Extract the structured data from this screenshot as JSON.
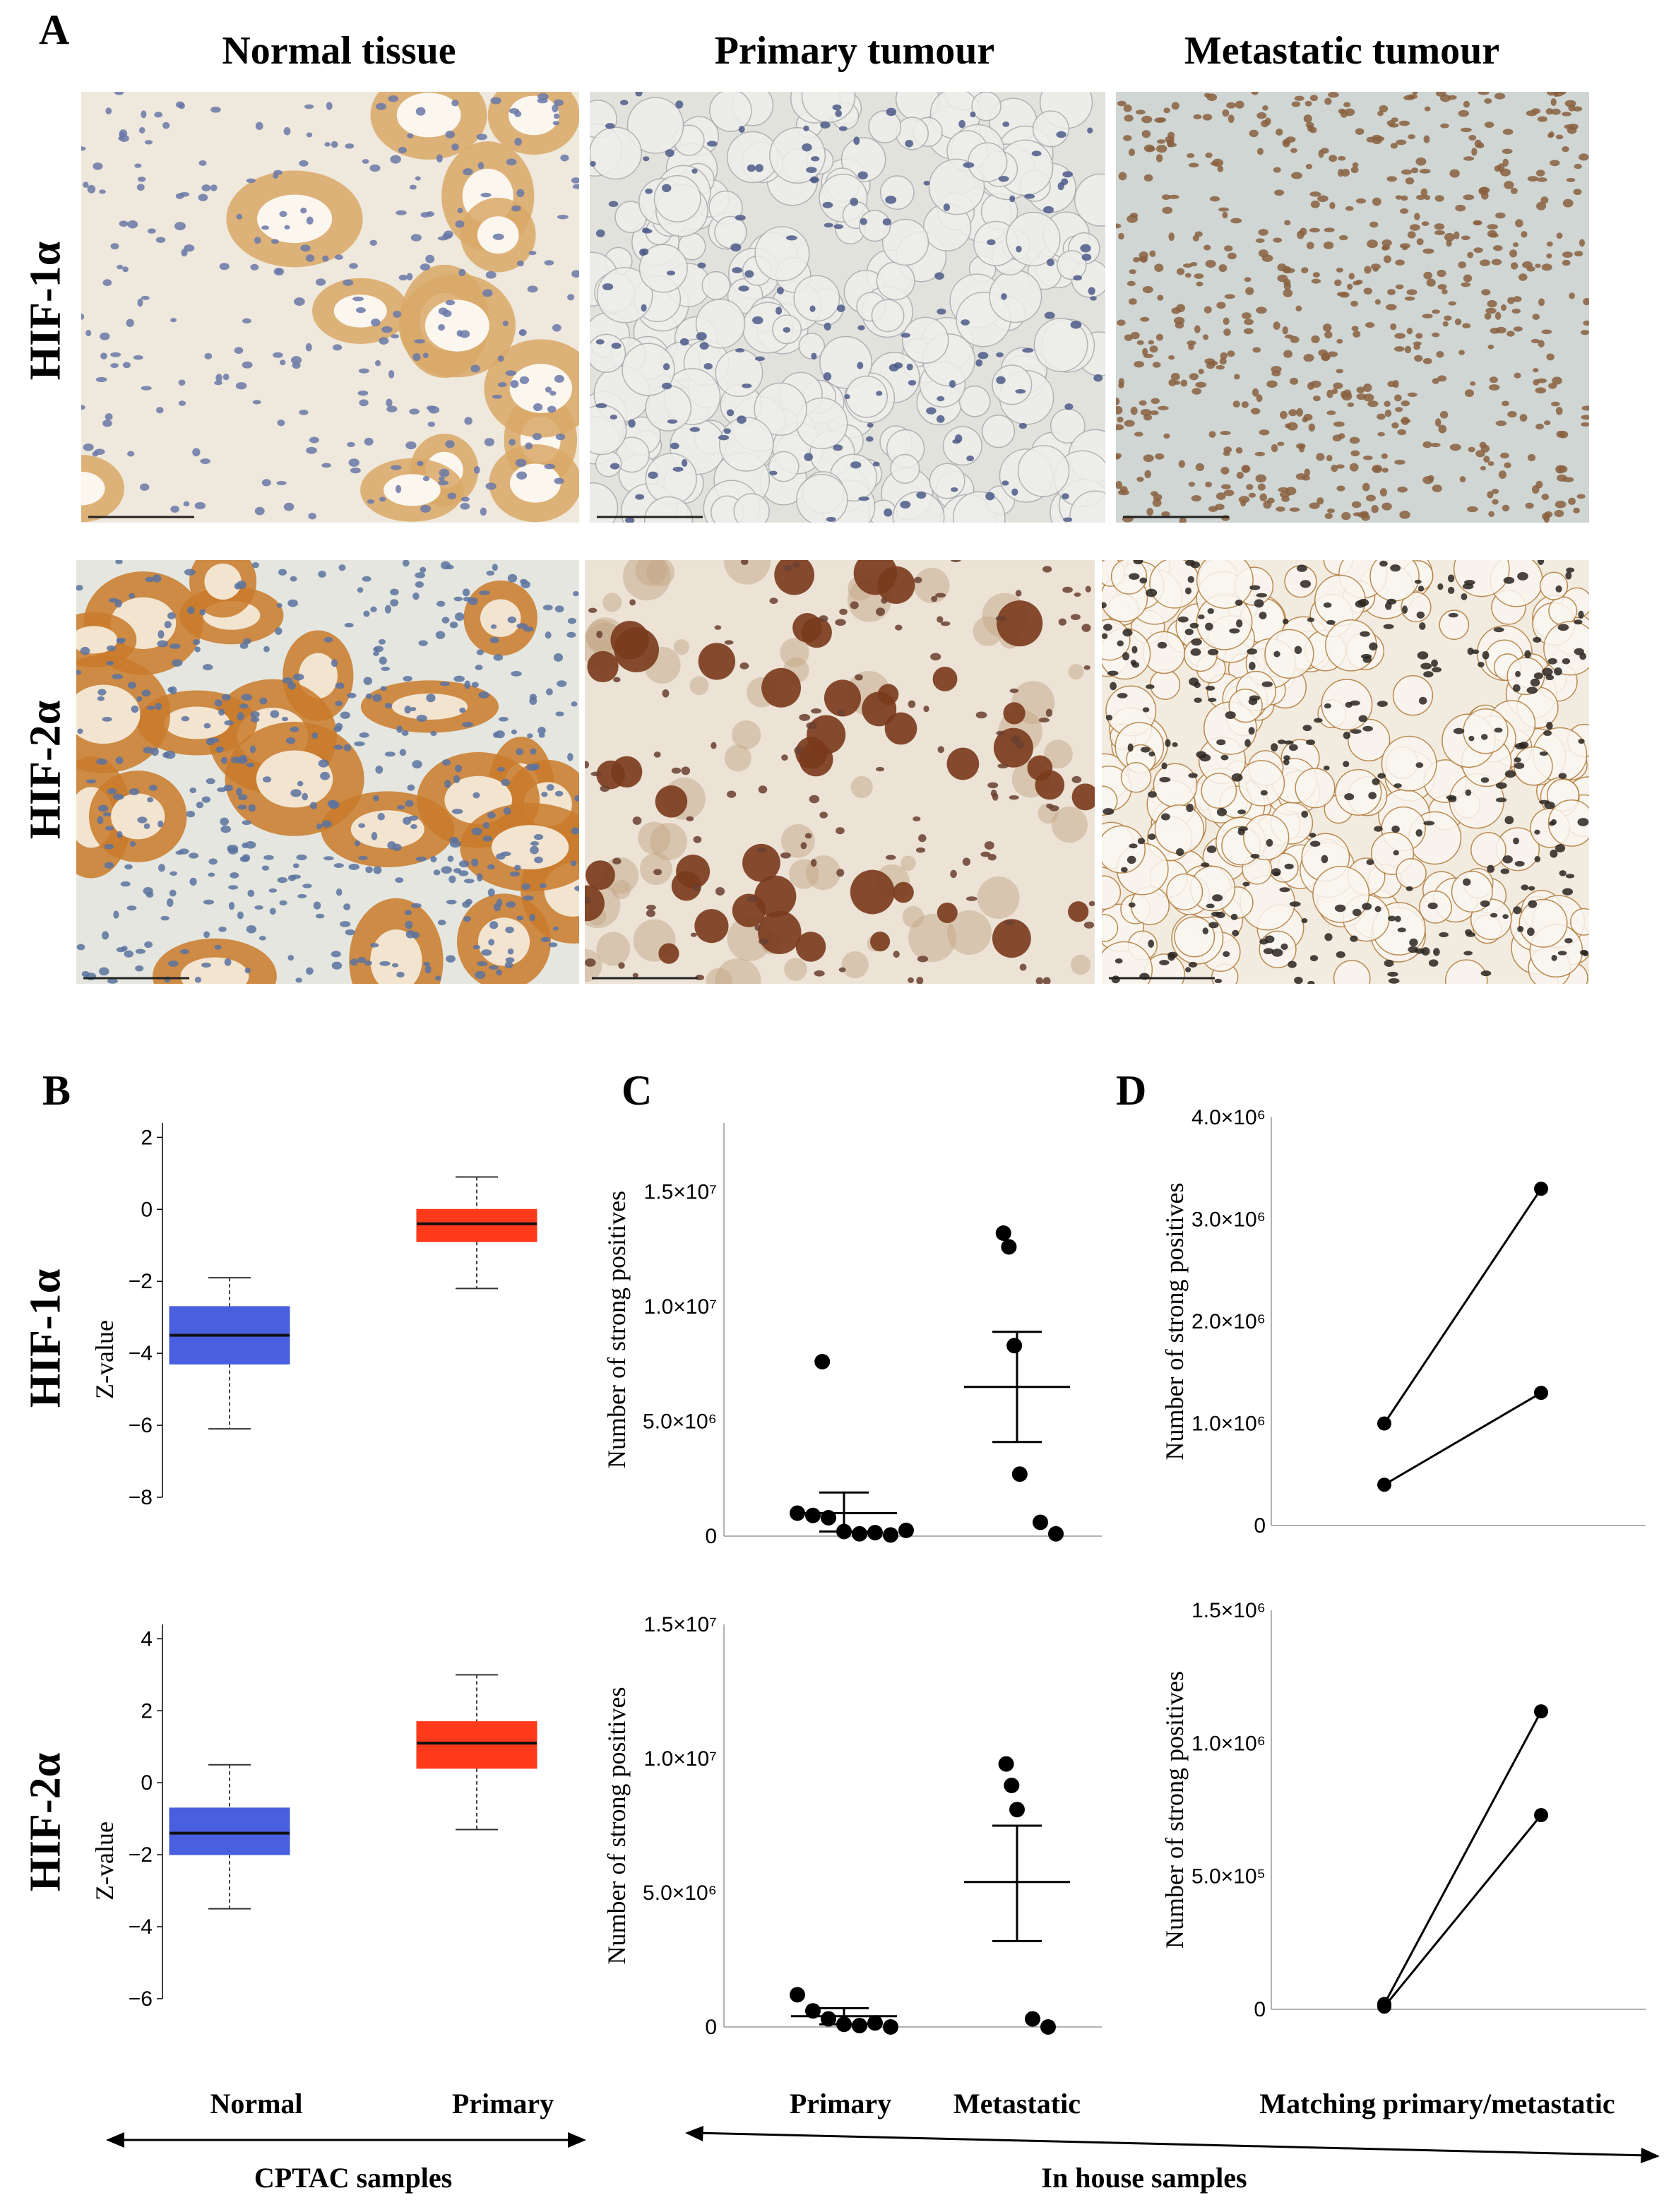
{
  "panel_letters": {
    "a": "A",
    "b": "B",
    "c": "C",
    "d": "D"
  },
  "columns": [
    "Normal tissue",
    "Primary tumour",
    "Metastatic tumour"
  ],
  "rows": {
    "hif1": "HIF-1α",
    "hif2": "HIF-2α"
  },
  "images": [
    {
      "name": "hif1-normal",
      "stain": "light brown cytoplasm, blue nuclei"
    },
    {
      "name": "hif1-primary",
      "stain": "mostly blue nuclei, clear cells"
    },
    {
      "name": "hif1-metastatic",
      "stain": "dense brown nuclei"
    },
    {
      "name": "hif2-normal",
      "stain": "strong brown tubules, blue glomeruli"
    },
    {
      "name": "hif2-primary",
      "stain": "dark brown clusters"
    },
    {
      "name": "hif2-metastatic",
      "stain": "brown membranes, dark nuclei"
    }
  ],
  "colors": {
    "normal_box": "#4a5ee0",
    "primary_box": "#ff3a1a",
    "stain_brown": "#b8641e",
    "nuclei_blue": "#5a6aa0"
  },
  "chart_data": [
    {
      "id": "B-HIF1",
      "type": "box",
      "ylabel": "Z-value",
      "yticks": [
        2,
        0,
        -2,
        -4,
        -6,
        -8
      ],
      "ylim": [
        -8,
        2.4
      ],
      "categories": [
        "Normal",
        "Primary"
      ],
      "boxes": [
        {
          "category": "Normal",
          "whisker_low": -6.1,
          "q1": -4.3,
          "median": -3.5,
          "q3": -2.7,
          "whisker_high": -1.9
        },
        {
          "category": "Primary",
          "whisker_low": -2.2,
          "q1": -0.9,
          "median": -0.4,
          "q3": 0.0,
          "whisker_high": 0.9
        }
      ]
    },
    {
      "id": "B-HIF2",
      "type": "box",
      "ylabel": "Z-value",
      "yticks": [
        4,
        2,
        0,
        -2,
        -4,
        -6
      ],
      "ylim": [
        -6,
        4.4
      ],
      "categories": [
        "Normal",
        "Primary"
      ],
      "boxes": [
        {
          "category": "Normal",
          "whisker_low": -3.5,
          "q1": -2.0,
          "median": -1.4,
          "q3": -0.7,
          "whisker_high": 0.5
        },
        {
          "category": "Primary",
          "whisker_low": -1.3,
          "q1": 0.4,
          "median": 1.1,
          "q3": 1.7,
          "whisker_high": 3.0
        }
      ]
    },
    {
      "id": "C-HIF1",
      "type": "scatter",
      "ylabel": "Number of strong positives",
      "ytick_labels": [
        "1.5×10⁷",
        "1.0×10⁷",
        "5.0×10⁶",
        "0"
      ],
      "ytick_values": [
        15000000,
        10000000,
        5000000,
        0
      ],
      "ylim": [
        0,
        18000000
      ],
      "categories": [
        "Primary",
        "Metastatic"
      ],
      "groups": [
        {
          "category": "Primary",
          "points": [
            7600000,
            1000000,
            900000,
            800000,
            200000,
            100000,
            150000,
            50000,
            250000
          ],
          "mean": 1000000,
          "sem_low": 200000,
          "sem_high": 1900000
        },
        {
          "category": "Metastatic",
          "points": [
            13200000,
            12600000,
            8300000,
            2700000,
            600000,
            100000
          ],
          "mean": 6500000,
          "sem_low": 4100000,
          "sem_high": 8900000
        }
      ]
    },
    {
      "id": "C-HIF2",
      "type": "scatter",
      "ylabel": "Number of strong positives",
      "ytick_labels": [
        "1.5×10⁷",
        "1.0×10⁷",
        "5.0×10⁶",
        "0"
      ],
      "ytick_values": [
        15000000,
        10000000,
        5000000,
        0
      ],
      "ylim": [
        0,
        15000000
      ],
      "categories": [
        "Primary",
        "Metastatic"
      ],
      "groups": [
        {
          "category": "Primary",
          "points": [
            1200000,
            600000,
            300000,
            100000,
            50000,
            150000,
            0
          ],
          "mean": 400000,
          "sem_low": 100000,
          "sem_high": 700000
        },
        {
          "category": "Metastatic",
          "points": [
            9800000,
            9000000,
            8100000,
            300000,
            0
          ],
          "mean": 5400000,
          "sem_low": 3200000,
          "sem_high": 7500000
        }
      ]
    },
    {
      "id": "D-HIF1",
      "type": "line",
      "ylabel": "Number of strong positives",
      "ytick_labels": [
        "4.0×10⁶",
        "3.0×10⁶",
        "2.0×10⁶",
        "1.0×10⁶",
        "0"
      ],
      "ytick_values": [
        4000000,
        3000000,
        2000000,
        1000000,
        0
      ],
      "ylim": [
        0,
        4000000
      ],
      "pairs": [
        [
          1000000,
          3300000
        ],
        [
          400000,
          1300000
        ]
      ]
    },
    {
      "id": "D-HIF2",
      "type": "line",
      "ylabel": "Number of strong positives",
      "ytick_labels": [
        "1.5×10⁶",
        "1.0×10⁶",
        "5.0×10⁵",
        "0"
      ],
      "ytick_values": [
        1500000,
        1000000,
        500000,
        0
      ],
      "ylim": [
        0,
        1500000
      ],
      "pairs": [
        [
          20000,
          1120000
        ],
        [
          10000,
          730000
        ]
      ]
    }
  ],
  "bottom": {
    "normal": "Normal",
    "primary_b": "Primary",
    "primary_c": "Primary",
    "metastatic": "Metastatic",
    "matching": "Matching primary/metastatic",
    "cptac": "CPTAC samples",
    "inhouse": "In house samples"
  }
}
